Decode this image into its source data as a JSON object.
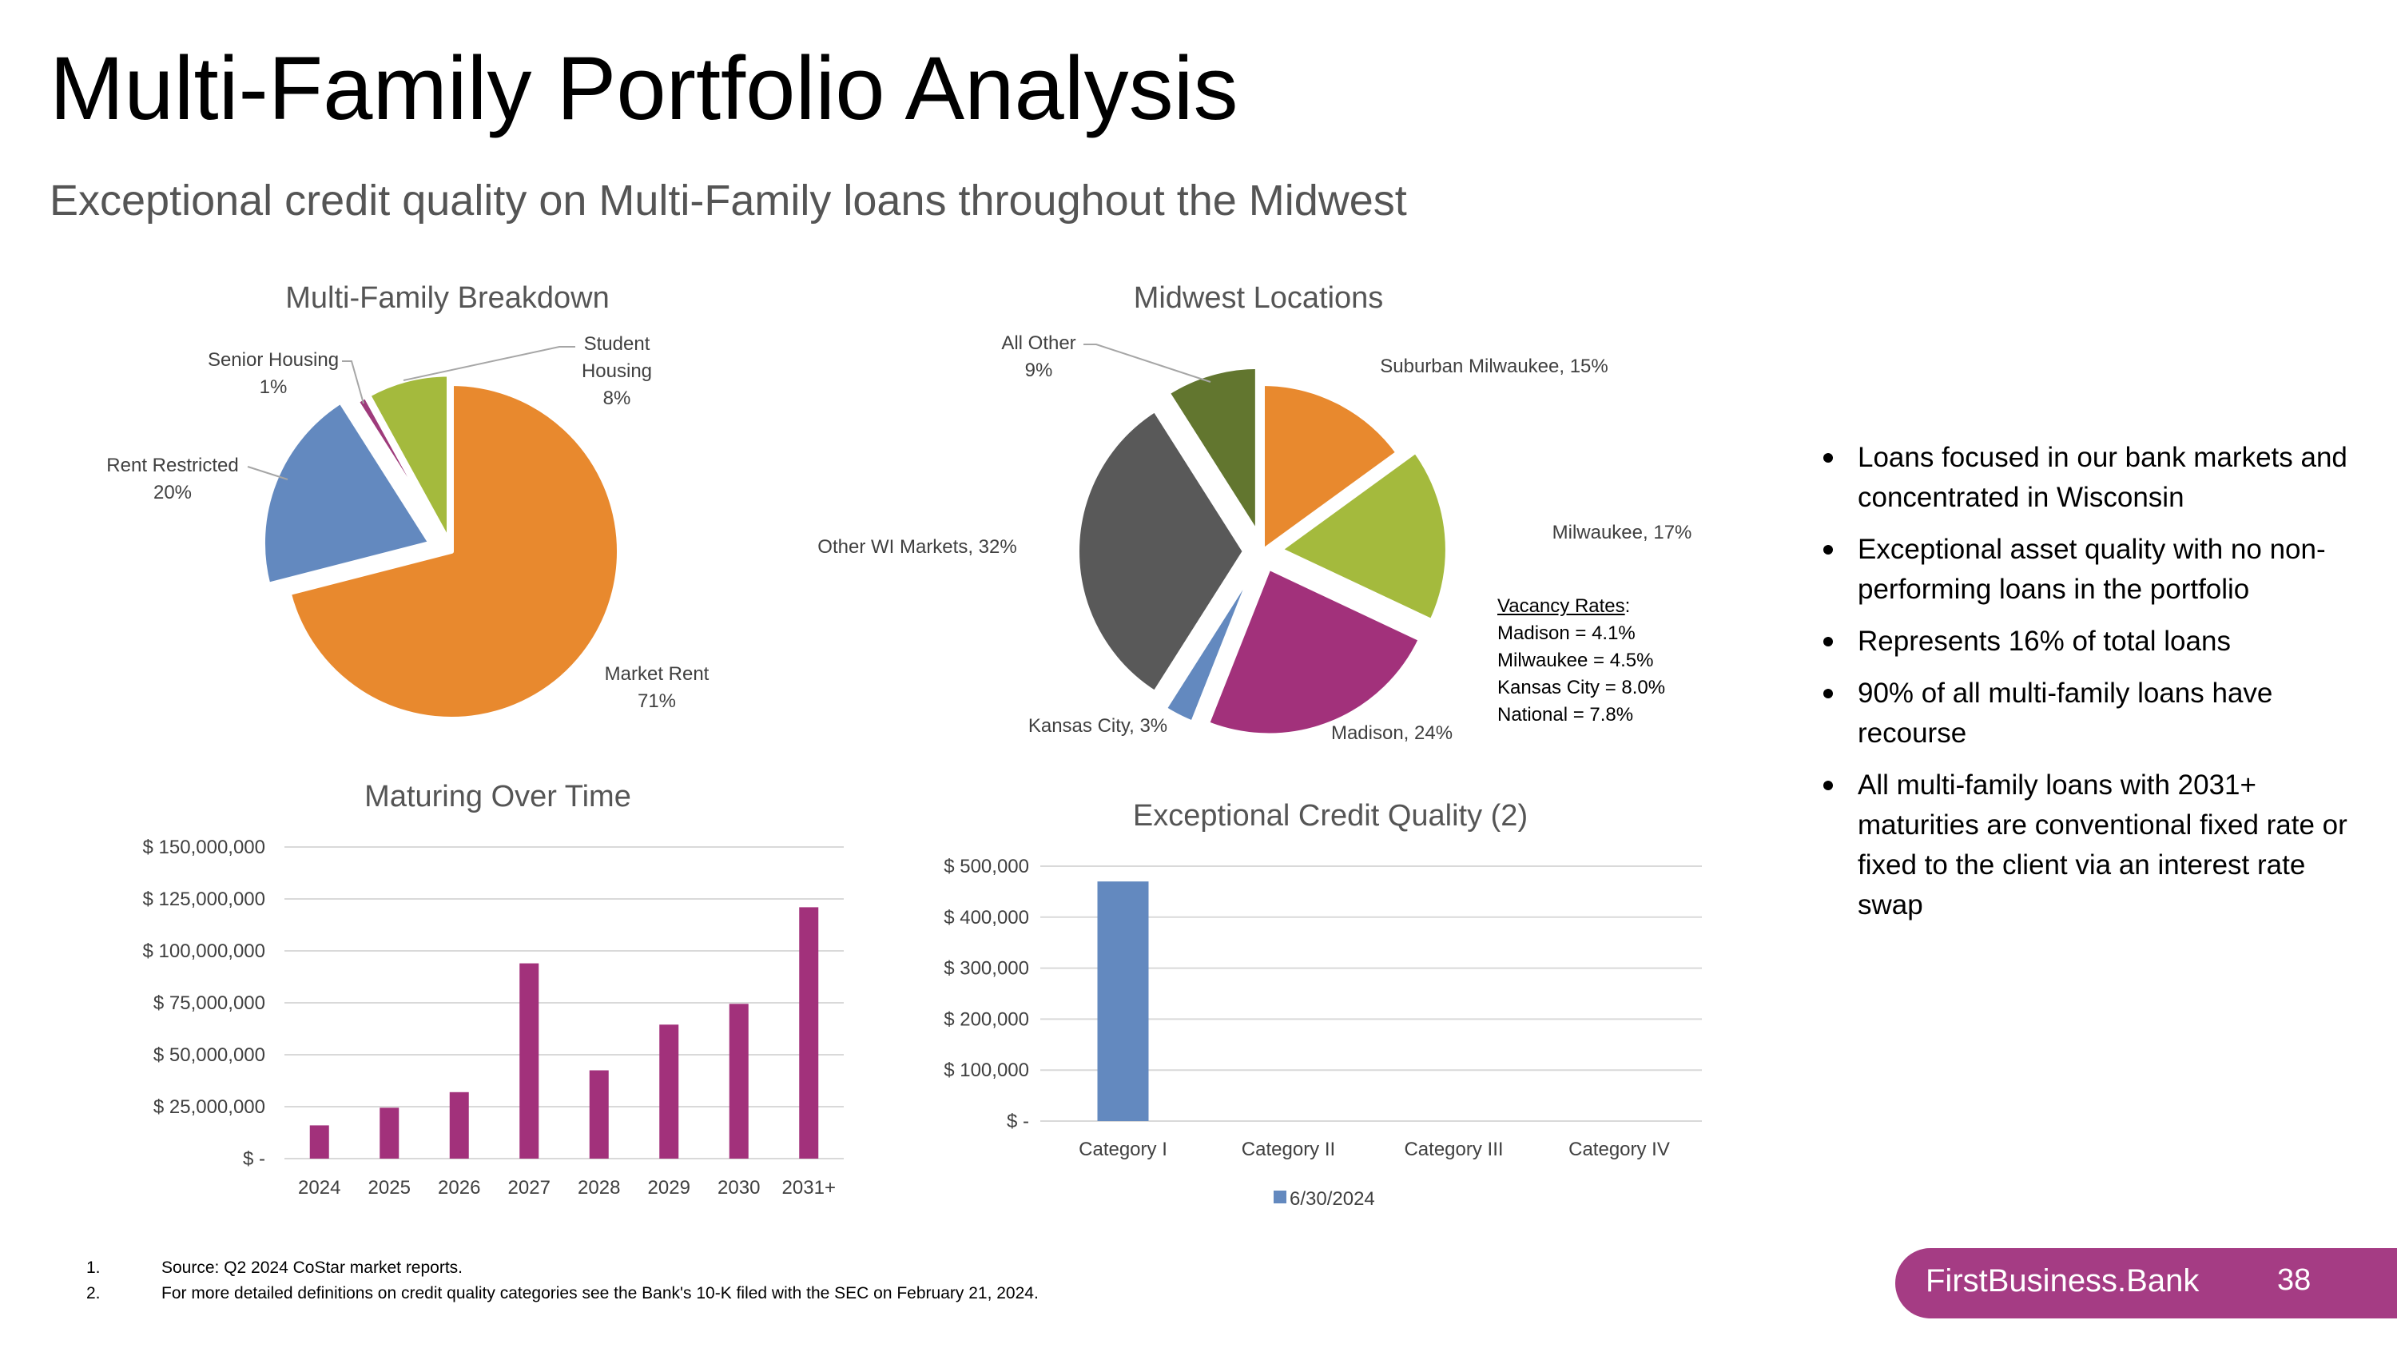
{
  "header": {
    "title": "Multi-Family Portfolio Analysis",
    "subtitle": "Exceptional credit quality on Multi-Family loans throughout the Midwest"
  },
  "colors": {
    "orange": "#e8892e",
    "blue": "#6389bf",
    "green": "#a4ba3d",
    "purple": "#9e3b7b",
    "magenta": "#a2317b",
    "dark_gray": "#595959",
    "olive": "#62762f",
    "brand": "#a53c84"
  },
  "chart_data": [
    {
      "type": "pie",
      "title": "Multi-Family Breakdown",
      "slices": [
        {
          "label": "Market Rent",
          "display": "71%",
          "value": 71,
          "color": "#e8892e"
        },
        {
          "label": "Rent Restricted",
          "display": "20%",
          "value": 20,
          "color": "#6389bf"
        },
        {
          "label": "Senior Housing",
          "display": "1%",
          "value": 1,
          "color": "#9e3b7b"
        },
        {
          "label": "Student Housing",
          "display": "8%",
          "value": 8,
          "color": "#a4ba3d"
        }
      ]
    },
    {
      "type": "pie",
      "title": "Midwest Locations",
      "slices": [
        {
          "label": "Suburban Milwaukee",
          "display": "15%",
          "value": 15,
          "color": "#e8892e"
        },
        {
          "label": "Milwaukee",
          "display": "17%",
          "value": 17,
          "color": "#a4ba3d"
        },
        {
          "label": "Madison",
          "display": "24%",
          "value": 24,
          "color": "#a2317b"
        },
        {
          "label": "Kansas City",
          "display": "3%",
          "value": 3,
          "color": "#6389bf"
        },
        {
          "label": "Other WI Markets",
          "display": "32%",
          "value": 32,
          "color": "#595959"
        },
        {
          "label": "All Other",
          "display": "9%",
          "value": 9,
          "color": "#62762f"
        }
      ]
    },
    {
      "type": "bar",
      "title": "Maturing Over Time",
      "categories": [
        "2024",
        "2025",
        "2026",
        "2027",
        "2028",
        "2029",
        "2030",
        "2031+"
      ],
      "values": [
        16000000,
        24500000,
        32000000,
        94000000,
        42500000,
        64500000,
        74500000,
        121000000
      ],
      "ylim": [
        0,
        150000000
      ],
      "yticks": [
        {
          "value": 0,
          "label": "$ -"
        },
        {
          "value": 25000000,
          "label": "$ 25,000,000"
        },
        {
          "value": 50000000,
          "label": "$ 50,000,000"
        },
        {
          "value": 75000000,
          "label": "$ 75,000,000"
        },
        {
          "value": 100000000,
          "label": "$ 100,000,000"
        },
        {
          "value": 125000000,
          "label": "$ 125,000,000"
        },
        {
          "value": 150000000,
          "label": "$ 150,000,000"
        }
      ],
      "color": "#a2317b",
      "grid": true
    },
    {
      "type": "bar",
      "title": "Exceptional Credit Quality (2)",
      "categories": [
        "Category I",
        "Category II",
        "Category III",
        "Category IV"
      ],
      "series": [
        {
          "name": "6/30/2024",
          "values": [
            470000,
            0,
            0,
            0
          ],
          "color": "#6389bf"
        }
      ],
      "ylim": [
        0,
        500000
      ],
      "yticks": [
        {
          "value": 0,
          "label": "$ -"
        },
        {
          "value": 100000,
          "label": "$ 100,000"
        },
        {
          "value": 200000,
          "label": "$ 200,000"
        },
        {
          "value": 300000,
          "label": "$ 300,000"
        },
        {
          "value": 400000,
          "label": "$ 400,000"
        },
        {
          "value": 500000,
          "label": "$ 500,000"
        }
      ],
      "legend": "bottom",
      "grid": true
    }
  ],
  "vacancy": {
    "heading": "Vacancy Rates",
    "lines": [
      "Madison = 4.1%",
      "Milwaukee = 4.5%",
      "Kansas City = 8.0%",
      "National = 7.8%"
    ]
  },
  "bullets": [
    "Loans focused in our bank markets and concentrated in Wisconsin",
    "Exceptional asset quality with no non-performing loans in the portfolio",
    "Represents 16% of total loans",
    "90% of all multi-family loans have recourse",
    "All multi-family loans with 2031+ maturities are conventional fixed rate or fixed to the client via an interest rate swap"
  ],
  "footnotes": [
    {
      "num": "1.",
      "text": "Source: Q2 2024 CoStar market reports."
    },
    {
      "num": "2.",
      "text": "For more detailed definitions on credit quality categories see the Bank's 10-K filed with the SEC on February 21, 2024."
    }
  ],
  "brand": {
    "name": "FirstBusiness.Bank",
    "page": "38"
  }
}
